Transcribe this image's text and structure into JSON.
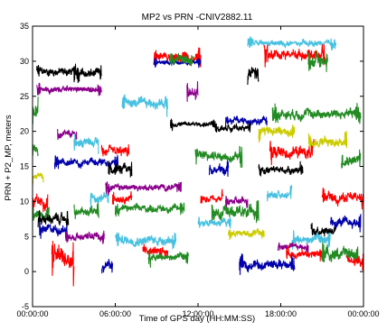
{
  "chart_data": {
    "type": "line",
    "title": "MP2 vs PRN -CNIV2882.11",
    "xlabel": "Time of GPS day (HH:MM:SS)",
    "ylabel": "PRN + P2_MP, meters",
    "xlim": [
      0,
      24
    ],
    "ylim": [
      -5,
      35
    ],
    "x_ticks": [
      0,
      6,
      12,
      18,
      24
    ],
    "x_tick_labels": [
      "00:00:00",
      "06:00:00",
      "12:00:00",
      "18:00:00",
      "00:00:00"
    ],
    "y_ticks": [
      -5,
      0,
      5,
      10,
      15,
      20,
      25,
      30,
      35
    ],
    "y_tick_labels": [
      "-5",
      "0",
      "5",
      "10",
      "15",
      "20",
      "25",
      "30",
      "35"
    ],
    "grid": false,
    "legend": "none",
    "series_segments": [
      {
        "color": "#000000",
        "x": [
          0.3,
          3.4
        ],
        "y": [
          28.5,
          28.5
        ],
        "noise": 0.7
      },
      {
        "color": "#000000",
        "x": [
          3.0,
          5.0
        ],
        "y": [
          28.2,
          28.2
        ],
        "noise": 0.8
      },
      {
        "color": "#8b008b",
        "x": [
          0.3,
          5.0
        ],
        "y": [
          26.0,
          26.0
        ],
        "noise": 0.5
      },
      {
        "color": "#228b22",
        "x": [
          0.0,
          0.4
        ],
        "y": [
          23.0,
          23.0
        ],
        "noise": 1.0
      },
      {
        "color": "#8b008b",
        "x": [
          1.8,
          3.2
        ],
        "y": [
          19.5,
          19.5
        ],
        "noise": 0.6
      },
      {
        "color": "#48c1e0",
        "x": [
          3.0,
          4.8
        ],
        "y": [
          18.5,
          18.5
        ],
        "noise": 0.8
      },
      {
        "color": "#228b22",
        "x": [
          0.0,
          0.4
        ],
        "y": [
          17.5,
          17.5
        ],
        "noise": 0.8
      },
      {
        "color": "#0000aa",
        "x": [
          1.6,
          6.2
        ],
        "y": [
          15.5,
          15.5
        ],
        "noise": 0.6
      },
      {
        "color": "#ff0000",
        "x": [
          5.0,
          7.0
        ],
        "y": [
          17.0,
          17.0
        ],
        "noise": 0.8
      },
      {
        "color": "#000000",
        "x": [
          5.5,
          7.2
        ],
        "y": [
          14.5,
          14.5
        ],
        "noise": 0.8
      },
      {
        "color": "#cccc00",
        "x": [
          0.0,
          0.8
        ],
        "y": [
          13.5,
          13.5
        ],
        "noise": 0.6
      },
      {
        "color": "#ff0000",
        "x": [
          0.0,
          1.1
        ],
        "y": [
          10.0,
          10.0
        ],
        "noise": 1.0
      },
      {
        "color": "#228b22",
        "x": [
          0.0,
          1.2
        ],
        "y": [
          8.0,
          8.0
        ],
        "noise": 0.8
      },
      {
        "color": "#000000",
        "x": [
          0.4,
          2.6
        ],
        "y": [
          7.5,
          7.5
        ],
        "noise": 0.8
      },
      {
        "color": "#0000aa",
        "x": [
          0.5,
          2.5
        ],
        "y": [
          6.0,
          6.0
        ],
        "noise": 0.8
      },
      {
        "color": "#8b008b",
        "x": [
          2.4,
          5.2
        ],
        "y": [
          5.0,
          5.0
        ],
        "noise": 0.6
      },
      {
        "color": "#ff0000",
        "x": [
          1.4,
          3.0
        ],
        "y": [
          2.0,
          2.0
        ],
        "noise": 1.8
      },
      {
        "color": "#228b22",
        "x": [
          3.0,
          4.8
        ],
        "y": [
          8.5,
          8.5
        ],
        "noise": 0.8
      },
      {
        "color": "#48c1e0",
        "x": [
          4.2,
          5.5
        ],
        "y": [
          10.5,
          10.5
        ],
        "noise": 0.8
      },
      {
        "color": "#8b008b",
        "x": [
          5.3,
          10.8
        ],
        "y": [
          12.0,
          12.0
        ],
        "noise": 0.5
      },
      {
        "color": "#ff0000",
        "x": [
          5.8,
          7.2
        ],
        "y": [
          10.5,
          10.5
        ],
        "noise": 0.6
      },
      {
        "color": "#228b22",
        "x": [
          6.0,
          11.0
        ],
        "y": [
          9.0,
          9.0
        ],
        "noise": 0.6
      },
      {
        "color": "#0000aa",
        "x": [
          5.0,
          5.8
        ],
        "y": [
          1.0,
          1.0
        ],
        "noise": 0.8
      },
      {
        "color": "#48c1e0",
        "x": [
          6.0,
          10.4
        ],
        "y": [
          4.5,
          4.5
        ],
        "noise": 0.8
      },
      {
        "color": "#ff0000",
        "x": [
          8.0,
          9.8
        ],
        "y": [
          3.0,
          3.0
        ],
        "noise": 0.8
      },
      {
        "color": "#228b22",
        "x": [
          8.4,
          11.3
        ],
        "y": [
          2.0,
          2.0
        ],
        "noise": 0.6
      },
      {
        "color": "#48c1e0",
        "x": [
          6.5,
          9.8
        ],
        "y": [
          24.0,
          24.0
        ],
        "noise": 0.8
      },
      {
        "color": "#ff0000",
        "x": [
          8.8,
          12.2
        ],
        "y": [
          30.5,
          30.5
        ],
        "noise": 0.8
      },
      {
        "color": "#0000aa",
        "x": [
          8.8,
          12.2
        ],
        "y": [
          29.8,
          29.8
        ],
        "noise": 0.4
      },
      {
        "color": "#228b22",
        "x": [
          10.0,
          11.6
        ],
        "y": [
          30.2,
          30.2
        ],
        "noise": 0.8
      },
      {
        "color": "#8b008b",
        "x": [
          11.2,
          12.0
        ],
        "y": [
          25.5,
          25.5
        ],
        "noise": 1.2
      },
      {
        "color": "#000000",
        "x": [
          10.0,
          13.2
        ],
        "y": [
          21.0,
          21.0
        ],
        "noise": 0.4
      },
      {
        "color": "#ff0000",
        "x": [
          12.2,
          13.8
        ],
        "y": [
          10.5,
          10.5
        ],
        "noise": 0.6
      },
      {
        "color": "#228b22",
        "x": [
          11.8,
          15.2
        ],
        "y": [
          16.5,
          16.5
        ],
        "noise": 0.8
      },
      {
        "color": "#0000aa",
        "x": [
          12.8,
          14.2
        ],
        "y": [
          14.5,
          14.5
        ],
        "noise": 0.8
      },
      {
        "color": "#8b008b",
        "x": [
          14.0,
          15.6
        ],
        "y": [
          10.0,
          10.0
        ],
        "noise": 0.6
      },
      {
        "color": "#228b22",
        "x": [
          13.0,
          16.4
        ],
        "y": [
          8.5,
          8.5
        ],
        "noise": 1.0
      },
      {
        "color": "#48c1e0",
        "x": [
          12.0,
          14.4
        ],
        "y": [
          7.0,
          7.0
        ],
        "noise": 0.6
      },
      {
        "color": "#cccc00",
        "x": [
          14.2,
          16.8
        ],
        "y": [
          5.5,
          5.5
        ],
        "noise": 0.6
      },
      {
        "color": "#0000aa",
        "x": [
          14.0,
          17.0
        ],
        "y": [
          21.5,
          21.5
        ],
        "noise": 0.6
      },
      {
        "color": "#000000",
        "x": [
          13.2,
          15.8
        ],
        "y": [
          20.5,
          20.5
        ],
        "noise": 0.5
      },
      {
        "color": "#000000",
        "x": [
          15.6,
          16.4
        ],
        "y": [
          28.5,
          28.5
        ],
        "noise": 1.4
      },
      {
        "color": "#48c1e0",
        "x": [
          15.6,
          22.0
        ],
        "y": [
          32.5,
          32.5
        ],
        "noise": 0.5
      },
      {
        "color": "#ff0000",
        "x": [
          16.8,
          21.2
        ],
        "y": [
          31.0,
          31.0
        ],
        "noise": 0.8
      },
      {
        "color": "#228b22",
        "x": [
          20.0,
          21.4
        ],
        "y": [
          30.0,
          30.0
        ],
        "noise": 1.0
      },
      {
        "color": "#228b22",
        "x": [
          17.4,
          23.8
        ],
        "y": [
          22.5,
          22.5
        ],
        "noise": 0.8
      },
      {
        "color": "#cccc00",
        "x": [
          16.4,
          19.0
        ],
        "y": [
          20.0,
          20.0
        ],
        "noise": 0.8
      },
      {
        "color": "#ff0000",
        "x": [
          17.2,
          20.4
        ],
        "y": [
          17.0,
          17.0
        ],
        "noise": 1.0
      },
      {
        "color": "#000000",
        "x": [
          16.4,
          19.6
        ],
        "y": [
          14.5,
          14.5
        ],
        "noise": 0.6
      },
      {
        "color": "#cccc00",
        "x": [
          20.0,
          22.8
        ],
        "y": [
          18.5,
          18.5
        ],
        "noise": 0.8
      },
      {
        "color": "#48c1e0",
        "x": [
          17.0,
          18.8
        ],
        "y": [
          11.0,
          11.0
        ],
        "noise": 0.6
      },
      {
        "color": "#ff0000",
        "x": [
          21.0,
          24.0
        ],
        "y": [
          10.5,
          10.5
        ],
        "noise": 0.8
      },
      {
        "color": "#228b22",
        "x": [
          22.4,
          23.8
        ],
        "y": [
          16.0,
          16.0
        ],
        "noise": 0.8
      },
      {
        "color": "#000000",
        "x": [
          20.2,
          22.0
        ],
        "y": [
          6.0,
          6.0
        ],
        "noise": 0.8
      },
      {
        "color": "#0000aa",
        "x": [
          21.6,
          23.8
        ],
        "y": [
          7.0,
          7.0
        ],
        "noise": 0.8
      },
      {
        "color": "#48c1e0",
        "x": [
          18.8,
          21.6
        ],
        "y": [
          4.5,
          4.5
        ],
        "noise": 0.8
      },
      {
        "color": "#8b008b",
        "x": [
          17.8,
          20.0
        ],
        "y": [
          3.5,
          3.5
        ],
        "noise": 0.5
      },
      {
        "color": "#ff0000",
        "x": [
          18.4,
          21.0
        ],
        "y": [
          2.5,
          2.5
        ],
        "noise": 0.6
      },
      {
        "color": "#0000aa",
        "x": [
          15.0,
          19.0
        ],
        "y": [
          1.0,
          1.0
        ],
        "noise": 0.8
      },
      {
        "color": "#228b22",
        "x": [
          21.0,
          23.6
        ],
        "y": [
          2.5,
          2.5
        ],
        "noise": 1.0
      },
      {
        "color": "#ff0000",
        "x": [
          22.8,
          24.0
        ],
        "y": [
          1.5,
          1.5
        ],
        "noise": 0.8
      }
    ]
  }
}
